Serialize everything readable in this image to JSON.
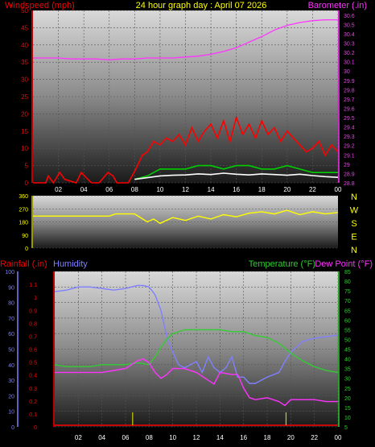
{
  "chart_data": [
    {
      "type": "line",
      "title": "24 hour graph day : April 07 2026",
      "left_axis_label": "Windspeed (mph)",
      "right_axis_label": "Barometer (.in)",
      "x_ticks": [
        "02",
        "04",
        "06",
        "08",
        "10",
        "12",
        "14",
        "16",
        "18",
        "20",
        "22",
        "00"
      ],
      "wind_ticks": [
        "0",
        "5",
        "10",
        "15",
        "20",
        "25",
        "30",
        "35",
        "40",
        "45",
        "50"
      ],
      "wind_ylim": [
        0,
        50
      ],
      "baro_ticks": [
        "28.8",
        "28.9",
        "29",
        "29.1",
        "29.2",
        "29.3",
        "29.4",
        "29.5",
        "29.6",
        "29.7",
        "29.8",
        "29.9",
        "30",
        "30.1",
        "30.2",
        "30.3",
        "30.4",
        "30.5",
        "30.6"
      ],
      "baro_ylim": [
        28.8,
        30.65
      ],
      "series": [
        {
          "name": "Barometer (.in)",
          "color": "#ff33ff",
          "x": [
            0,
            1,
            2,
            3,
            4,
            5,
            6,
            7,
            8,
            9,
            10,
            11,
            12,
            13,
            14,
            15,
            16,
            17,
            18,
            19,
            20,
            21,
            22,
            23,
            24
          ],
          "values": [
            30.14,
            30.14,
            30.14,
            30.13,
            30.13,
            30.13,
            30.12,
            30.13,
            30.13,
            30.14,
            30.14,
            30.14,
            30.15,
            30.16,
            30.18,
            30.21,
            30.25,
            30.31,
            30.37,
            30.44,
            30.49,
            30.52,
            30.54,
            30.55,
            30.55
          ]
        },
        {
          "name": "Wind gust",
          "color": "#ff0000",
          "x": [
            0,
            1,
            1.2,
            1.6,
            2.1,
            2.5,
            3.4,
            3.8,
            4.6,
            5.2,
            5.9,
            6.3,
            6.6,
            7.5,
            8.1,
            8.6,
            9.0,
            9.5,
            10,
            10.5,
            11,
            11.5,
            12,
            12.5,
            13,
            13.5,
            14,
            14.5,
            15,
            15.5,
            16,
            16.5,
            17,
            17.5,
            18,
            18.5,
            19,
            19.5,
            20,
            20.5,
            21,
            21.5,
            22,
            22.5,
            23,
            23.5,
            24
          ],
          "values": [
            0,
            0,
            2,
            0,
            3,
            1,
            0,
            3,
            0,
            0,
            3,
            2,
            0,
            0,
            4,
            8,
            9,
            12,
            11,
            13,
            12,
            14,
            11,
            16,
            12,
            15,
            17,
            13,
            18,
            12,
            19,
            14,
            17,
            13,
            18,
            14,
            16,
            12,
            15,
            13,
            11,
            9,
            10,
            12,
            8,
            11,
            9
          ]
        },
        {
          "name": "Wind average",
          "color": "#00cc00",
          "x": [
            8,
            9,
            10,
            11,
            12,
            13,
            14,
            15,
            16,
            17,
            18,
            19,
            20,
            21,
            22,
            23,
            24
          ],
          "values": [
            1,
            2,
            4,
            4,
            4,
            5,
            5,
            4,
            5,
            5,
            4,
            4,
            5,
            4,
            3,
            3,
            3
          ]
        },
        {
          "name": "Wind speed",
          "color": "#ffffff",
          "x": [
            8,
            9,
            10,
            11,
            12,
            13,
            14,
            15,
            16,
            17,
            18,
            19,
            20,
            21,
            22,
            23,
            24
          ],
          "values": [
            1,
            1.5,
            2,
            2.2,
            2.3,
            2.6,
            2.4,
            2.8,
            2.5,
            2.3,
            2.6,
            2.4,
            2.2,
            2.5,
            2.1,
            1.8,
            1.6
          ]
        }
      ]
    },
    {
      "type": "scatter",
      "left_axis_label": "Wind direction",
      "wind_dir_ticks": [
        "360",
        "270",
        "180",
        "90",
        "0"
      ],
      "ylim": [
        0,
        360
      ],
      "compass_labels": [
        "N",
        "W",
        "S",
        "E",
        "N"
      ],
      "series": [
        {
          "name": "Wind direction",
          "color": "#ffff00",
          "x": [
            0,
            1,
            2,
            3,
            4,
            5,
            6,
            6.5,
            7,
            8,
            9,
            9.5,
            10,
            11,
            12,
            13,
            14,
            15,
            16,
            17,
            18,
            19,
            20,
            21,
            22,
            23,
            24
          ],
          "values": [
            220,
            220,
            220,
            220,
            220,
            220,
            220,
            235,
            235,
            235,
            180,
            200,
            170,
            210,
            190,
            220,
            200,
            230,
            215,
            240,
            250,
            235,
            260,
            230,
            250,
            235,
            245
          ]
        }
      ]
    },
    {
      "type": "line",
      "left_axis_label": "Rainfall (.in)",
      "left2_axis_label": "Humidity",
      "right_axis_label": "Temperature (°F)",
      "right2_axis_label": "Dew Point (°F)",
      "rain_ticks": [
        "0",
        "0.1",
        "0.2",
        "0.3",
        "0.4",
        "0.5",
        "0.6",
        "0.7",
        "0.8",
        "0.9",
        "1",
        "1.1"
      ],
      "humidity_ticks": [
        "0",
        "10",
        "20",
        "30",
        "40",
        "50",
        "60",
        "70",
        "80",
        "90",
        "100"
      ],
      "temp_ticks": [
        "5",
        "10",
        "15",
        "20",
        "25",
        "30",
        "35",
        "40",
        "45",
        "50",
        "55",
        "60",
        "65",
        "70",
        "75",
        "80",
        "85"
      ],
      "humidity_ylim": [
        0,
        100
      ],
      "temp_ylim": [
        5,
        85
      ],
      "x_ticks": [
        "02",
        "04",
        "06",
        "08",
        "10",
        "12",
        "14",
        "16",
        "18",
        "20",
        "22",
        "00"
      ],
      "series": [
        {
          "name": "Humidity",
          "color": "#8080ff",
          "x": [
            0,
            1,
            2,
            3,
            4,
            5,
            6,
            7,
            7.5,
            8,
            8.5,
            9,
            9.5,
            10,
            10.5,
            11,
            12,
            12.5,
            13,
            13.5,
            14,
            14.5,
            15,
            15.5,
            16,
            16.5,
            17,
            18,
            19,
            19.5,
            20,
            21,
            22,
            23,
            24
          ],
          "values": [
            87,
            88,
            90,
            90,
            89,
            88,
            89,
            91,
            91,
            90,
            85,
            75,
            58,
            48,
            40,
            38,
            42,
            35,
            45,
            38,
            35,
            38,
            45,
            32,
            32,
            28,
            28,
            32,
            35,
            42,
            48,
            55,
            57,
            58,
            59
          ]
        },
        {
          "name": "Temperature (°F)",
          "color": "#33cc33",
          "x": [
            0,
            1,
            2,
            3,
            4,
            5,
            6,
            7,
            8,
            8.5,
            9,
            9.5,
            10,
            11,
            12,
            13,
            14,
            15,
            16,
            17,
            18,
            19,
            20,
            21,
            22,
            23,
            24
          ],
          "values": [
            37,
            36,
            36,
            36,
            37,
            37,
            37,
            38,
            37,
            41,
            46,
            50,
            53,
            55,
            55,
            55,
            55,
            54,
            54,
            52,
            51,
            48,
            43,
            39,
            36,
            34,
            33
          ]
        },
        {
          "name": "Dew Point (°F)",
          "color": "#ff33ff",
          "x": [
            0,
            1,
            2,
            3,
            4,
            5,
            6,
            7,
            7.5,
            8,
            8.5,
            9,
            9.5,
            10,
            11,
            12,
            13,
            13.5,
            14,
            15,
            15.5,
            16,
            16.5,
            17,
            18,
            19,
            19.5,
            20,
            21,
            22,
            23,
            24
          ],
          "values": [
            33,
            33,
            33,
            33,
            33,
            34,
            35,
            39,
            40,
            38,
            33,
            30,
            32,
            35,
            35,
            33,
            29,
            27,
            33,
            32,
            32,
            25,
            20,
            19,
            20,
            18,
            16,
            19,
            19,
            19,
            18,
            18
          ]
        },
        {
          "name": "Rainfall (.in)",
          "color": "#ff0000",
          "x": [
            0,
            24
          ],
          "values": [
            0,
            0
          ]
        }
      ],
      "rain_ticks_marks": [
        6.6,
        19.6
      ]
    }
  ]
}
